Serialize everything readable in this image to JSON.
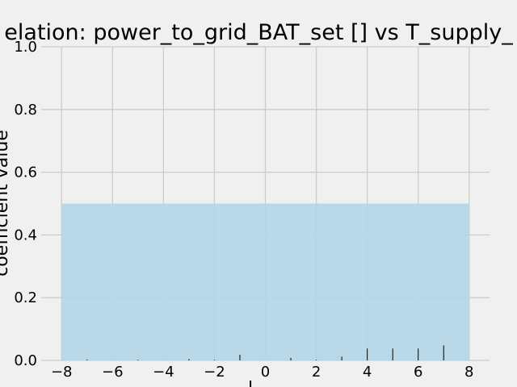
{
  "chart_data": {
    "type": "bar",
    "title": "elation: power_to_grid_BAT_set [] vs T_supply_",
    "ylabel": "coefficient value",
    "xlabel": "l",
    "xlim": [
      -8,
      8
    ],
    "ylim": [
      0,
      1
    ],
    "xticks": [
      -8,
      -6,
      -4,
      -2,
      0,
      2,
      4,
      6,
      8
    ],
    "xtick_labels": [
      "−8",
      "−6",
      "−4",
      "−2",
      "0",
      "2",
      "4",
      "6",
      "8"
    ],
    "yticks": [
      0.0,
      0.2,
      0.4,
      0.6,
      0.8,
      1.0
    ],
    "ytick_labels": [
      "0.0",
      "0.2",
      "0.4",
      "0.6",
      "0.8",
      "1.0"
    ],
    "grid": true,
    "band": {
      "x_from": -8,
      "x_to": 8,
      "y_from": 0,
      "y_to": 0.5,
      "color": "#b3d6e8"
    },
    "lags": [
      -8,
      -7,
      -6,
      -5,
      -4,
      -3,
      -2,
      -1,
      0,
      1,
      2,
      3,
      4,
      5,
      6,
      7,
      8
    ],
    "values": [
      0.0,
      0.003,
      0.0,
      0.002,
      0.0,
      0.004,
      0.002,
      0.018,
      0.0,
      0.008,
      0.002,
      0.012,
      0.038,
      0.038,
      0.038,
      0.048,
      0.0
    ],
    "stem_color": "#000000",
    "background_color": "#f0f0f0",
    "grid_color": "#cbcbcb"
  }
}
